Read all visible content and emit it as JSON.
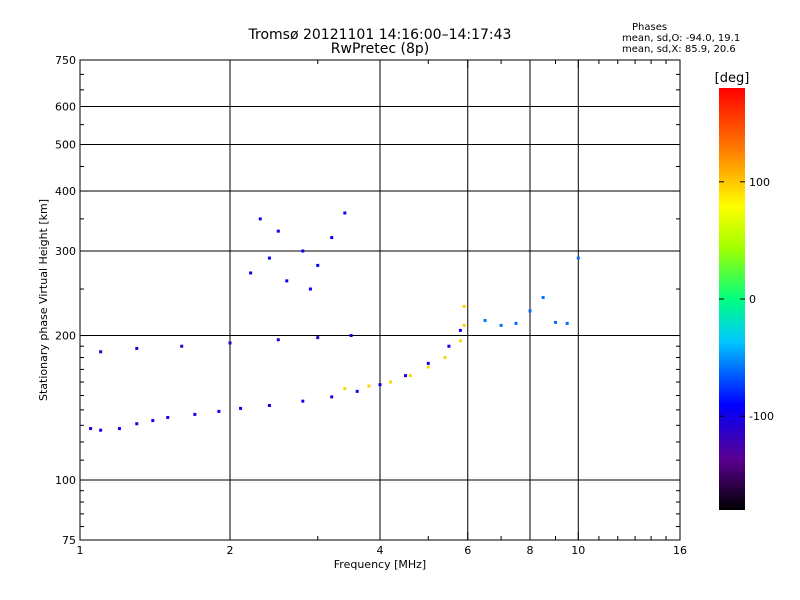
{
  "chart_data": {
    "type": "scatter",
    "title": "Tromsø 20121101 14:16:00–14:17:43",
    "subtitle": "RwPretec (8p)",
    "xlabel": "Frequency [MHz]",
    "ylabel": "Stationary phase Virtual Height [km]",
    "x_scale": "log",
    "y_scale": "log",
    "xlim": [
      1,
      16
    ],
    "ylim": [
      75,
      750
    ],
    "x_ticks": [
      1,
      2,
      4,
      6,
      8,
      10,
      16
    ],
    "y_ticks": [
      75,
      100,
      200,
      300,
      400,
      500,
      600,
      750
    ],
    "x_grid": [
      2,
      4,
      6,
      8,
      10
    ],
    "y_grid": [
      100,
      200,
      300,
      400,
      500,
      600
    ],
    "stats": {
      "header": "Phases",
      "line_o": "mean, sd,O: -94.0, 19.1",
      "line_x": "mean, sd,X:  85.9, 20.6"
    },
    "colorbar": {
      "label": "[deg]",
      "ticks": [
        100,
        0,
        -100
      ],
      "range": [
        -180,
        180
      ]
    },
    "clusters": [
      {
        "name": "o-trace-lower",
        "phase": -100,
        "points": [
          [
            1.05,
            128
          ],
          [
            1.1,
            127
          ],
          [
            1.2,
            128
          ],
          [
            1.3,
            131
          ],
          [
            1.4,
            133
          ],
          [
            1.5,
            135
          ],
          [
            1.7,
            137
          ],
          [
            1.9,
            139
          ],
          [
            2.1,
            141
          ],
          [
            2.4,
            143
          ],
          [
            2.8,
            146
          ],
          [
            3.2,
            149
          ],
          [
            3.6,
            153
          ],
          [
            4.0,
            158
          ],
          [
            4.5,
            165
          ],
          [
            5.0,
            175
          ],
          [
            5.5,
            190
          ],
          [
            5.8,
            205
          ]
        ]
      },
      {
        "name": "o-trace-band",
        "phase": -110,
        "points": [
          [
            1.1,
            185
          ],
          [
            1.3,
            188
          ],
          [
            1.6,
            190
          ],
          [
            2.0,
            193
          ],
          [
            2.5,
            196
          ],
          [
            3.0,
            198
          ],
          [
            3.5,
            200
          ]
        ]
      },
      {
        "name": "o-upper-cloud",
        "phase": -95,
        "points": [
          [
            2.2,
            270
          ],
          [
            2.4,
            290
          ],
          [
            2.6,
            260
          ],
          [
            2.8,
            300
          ],
          [
            3.0,
            280
          ],
          [
            3.2,
            320
          ],
          [
            2.5,
            330
          ],
          [
            2.9,
            250
          ],
          [
            2.3,
            350
          ],
          [
            3.4,
            360
          ]
        ]
      },
      {
        "name": "x-trace",
        "phase": 95,
        "points": [
          [
            3.4,
            155
          ],
          [
            3.8,
            157
          ],
          [
            4.2,
            160
          ],
          [
            4.6,
            165
          ],
          [
            5.0,
            172
          ],
          [
            5.4,
            180
          ],
          [
            5.8,
            195
          ],
          [
            5.9,
            210
          ],
          [
            5.9,
            230
          ]
        ]
      },
      {
        "name": "high-frequency-echoes",
        "phase": -60,
        "points": [
          [
            6.5,
            215
          ],
          [
            7.0,
            210
          ],
          [
            7.5,
            212
          ],
          [
            8.0,
            225
          ],
          [
            8.5,
            240
          ],
          [
            9.0,
            213
          ],
          [
            9.5,
            212
          ],
          [
            10.0,
            290
          ]
        ]
      }
    ]
  }
}
